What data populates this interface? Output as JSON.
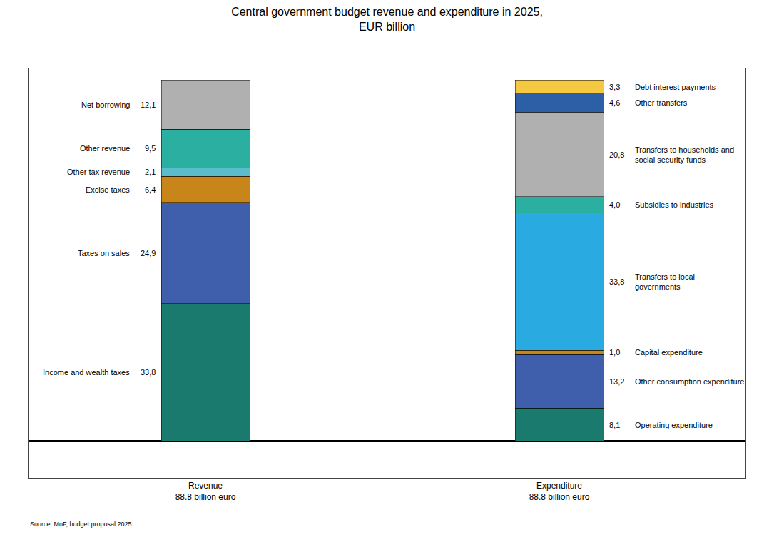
{
  "chart_data": {
    "type": "bar",
    "stacked": true,
    "title": "Central government budget revenue and expenditure in 2025,\nEUR billion",
    "annotations": [
      "Source: MoF, budget proposal 2025"
    ],
    "categories": [
      "Revenue\n88.8 billion euro",
      "Expenditure\n88.8 billion euro"
    ],
    "series": [
      {
        "name": "Income and wealth taxes",
        "color": "#1a7a6e",
        "values": [
          33.8,
          null
        ],
        "value_labels": [
          "33,8",
          null
        ]
      },
      {
        "name": "Taxes on sales",
        "color": "#3f5fad",
        "values": [
          24.9,
          null
        ],
        "value_labels": [
          "24,9",
          null
        ]
      },
      {
        "name": "Excise taxes",
        "color": "#c8861a",
        "values": [
          6.4,
          null
        ],
        "value_labels": [
          "6,4",
          null
        ]
      },
      {
        "name": "Other tax revenue",
        "color": "#5bbccc",
        "values": [
          2.1,
          null
        ],
        "value_labels": [
          "2,1",
          null
        ]
      },
      {
        "name": "Other revenue",
        "color": "#2aafa0",
        "values": [
          9.5,
          null
        ],
        "value_labels": [
          "9,5",
          null
        ]
      },
      {
        "name": "Net borrowing",
        "color": "#b0b0b0",
        "values": [
          12.1,
          null
        ],
        "value_labels": [
          "12,1",
          null
        ]
      },
      {
        "name": "Operating expenditure",
        "color": "#1a7a6e",
        "values": [
          null,
          8.1
        ],
        "value_labels": [
          null,
          "8,1"
        ]
      },
      {
        "name": "Other consumption expenditure",
        "color": "#3f5fad",
        "values": [
          null,
          13.2
        ],
        "value_labels": [
          null,
          "13,2"
        ]
      },
      {
        "name": "Capital expenditure",
        "color": "#c8861a",
        "values": [
          null,
          1.0
        ],
        "value_labels": [
          null,
          "1,0"
        ]
      },
      {
        "name": "Transfers to local\ngovernments",
        "color": "#29aae1",
        "values": [
          null,
          33.8
        ],
        "value_labels": [
          null,
          "33,8"
        ]
      },
      {
        "name": "Subsidies to industries",
        "color": "#2aafa0",
        "values": [
          null,
          4.0
        ],
        "value_labels": [
          null,
          "4,0"
        ]
      },
      {
        "name": "Transfers to households and\nsocial security funds",
        "color": "#b0b0b0",
        "values": [
          null,
          20.8
        ],
        "value_labels": [
          null,
          "20,8"
        ]
      },
      {
        "name": "Other transfers",
        "color": "#2d5fa6",
        "values": [
          null,
          4.6
        ],
        "value_labels": [
          null,
          "4,6"
        ]
      },
      {
        "name": "Debt interest payments",
        "color": "#f5c842",
        "values": [
          null,
          3.3
        ],
        "value_labels": [
          null,
          "3,3"
        ]
      }
    ],
    "ylim": [
      -9,
      91.8
    ],
    "tick_labels": "x",
    "data_labels": true,
    "grid": false
  }
}
